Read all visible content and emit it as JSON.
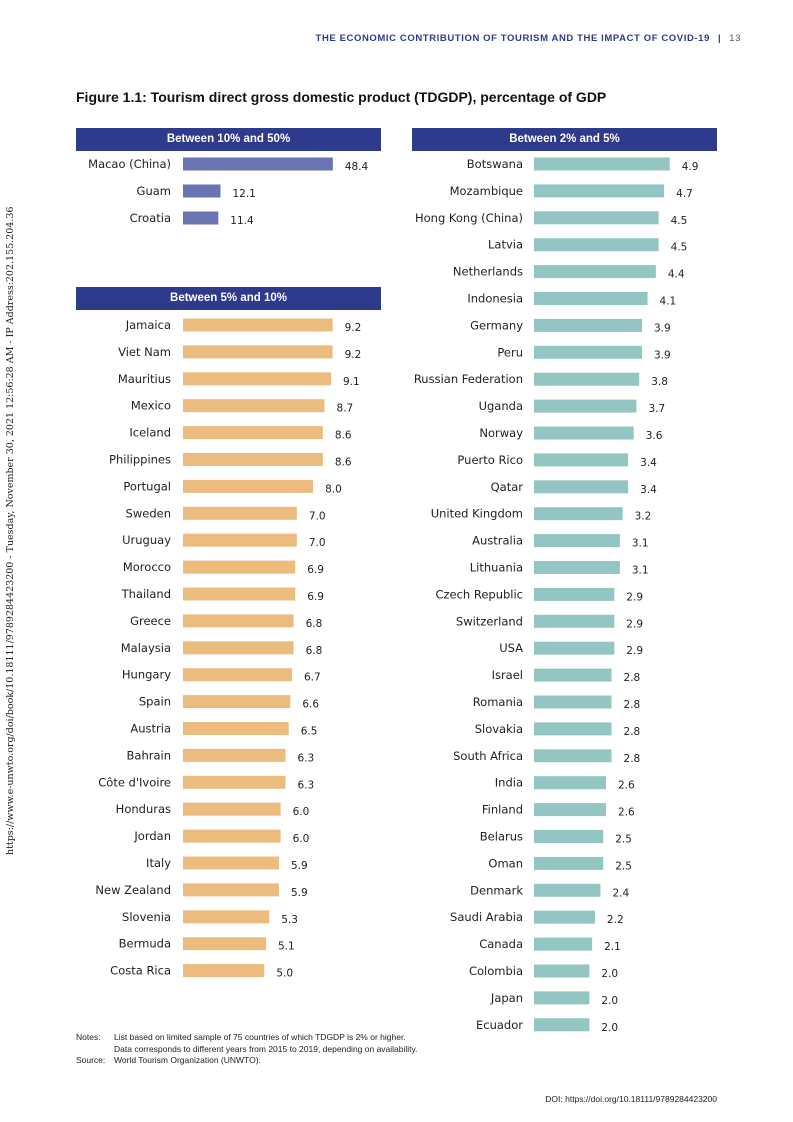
{
  "header": {
    "running_title": "THE ECONOMIC CONTRIBUTION OF TOURISM AND THE IMPACT OF COVID-19",
    "separator": "|",
    "page_number": "13"
  },
  "sidebar_text": "https://www.e-unwto.org/doi/book/10.18111/9789284423200 - Tuesday, November 30, 2021 12:56:28 AM - IP Address:202.155.204.36",
  "figure_title": "Figure 1.1: Tourism direct gross domestic product (TDGDP), percentage of GDP",
  "chart_data": [
    {
      "type": "bar",
      "orientation": "horizontal",
      "title": "Between 10% and 50%",
      "color": "#6b74b3",
      "categories": [
        "Macao (China)",
        "Guam",
        "Croatia"
      ],
      "values": [
        48.4,
        12.1,
        11.4
      ],
      "labels": [
        "48.4",
        "12.1",
        "11.4"
      ],
      "xlim": [
        0,
        52
      ]
    },
    {
      "type": "bar",
      "orientation": "horizontal",
      "title": "Between 5% and 10%",
      "color": "#ecbc7f",
      "categories": [
        "Jamaica",
        "Viet Nam",
        "Mauritius",
        "Mexico",
        "Iceland",
        "Philippines",
        "Portugal",
        "Sweden",
        "Uruguay",
        "Morocco",
        "Thailand",
        "Greece",
        "Malaysia",
        "Hungary",
        "Spain",
        "Austria",
        "Bahrain",
        "Côte d'Ivoire",
        "Honduras",
        "Jordan",
        "Italy",
        "New Zealand",
        "Slovenia",
        "Bermuda",
        "Costa Rica"
      ],
      "values": [
        9.2,
        9.2,
        9.1,
        8.7,
        8.6,
        8.6,
        8.0,
        7.0,
        7.0,
        6.9,
        6.9,
        6.8,
        6.8,
        6.7,
        6.6,
        6.5,
        6.3,
        6.3,
        6.0,
        6.0,
        5.9,
        5.9,
        5.3,
        5.1,
        5.0
      ],
      "labels": [
        "9.2",
        "9.2",
        "9.1",
        "8.7",
        "8.6",
        "8.6",
        "8.0",
        "7.0",
        "7.0",
        "6.9",
        "6.9",
        "6.8",
        "6.8",
        "6.7",
        "6.6",
        "6.5",
        "6.3",
        "6.3",
        "6.0",
        "6.0",
        "5.9",
        "5.9",
        "5.3",
        "5.1",
        "5.0"
      ],
      "xlim": [
        0,
        9.9
      ]
    },
    {
      "type": "bar",
      "orientation": "horizontal",
      "title": "Between 2% and 5%",
      "color": "#93c5c3",
      "categories": [
        "Botswana",
        "Mozambique",
        "Hong Kong (China)",
        "Latvia",
        "Netherlands",
        "Indonesia",
        "Germany",
        "Peru",
        "Russian Federation",
        "Uganda",
        "Norway",
        "Puerto Rico",
        "Qatar",
        "United Kingdom",
        "Australia",
        "Lithuania",
        "Czech Republic",
        "Switzerland",
        "USA",
        "Israel",
        "Romania",
        "Slovakia",
        "South Africa",
        "India",
        "Finland",
        "Belarus",
        "Oman",
        "Denmark",
        "Saudi Arabia",
        "Canada",
        "Colombia",
        "Japan",
        "Ecuador"
      ],
      "values": [
        4.9,
        4.7,
        4.5,
        4.5,
        4.4,
        4.1,
        3.9,
        3.9,
        3.8,
        3.7,
        3.6,
        3.4,
        3.4,
        3.2,
        3.1,
        3.1,
        2.9,
        2.9,
        2.9,
        2.8,
        2.8,
        2.8,
        2.8,
        2.6,
        2.6,
        2.5,
        2.5,
        2.4,
        2.2,
        2.1,
        2.0,
        2.0,
        2.0
      ],
      "labels": [
        "4.9",
        "4.7",
        "4.5",
        "4.5",
        "4.4",
        "4.1",
        "3.9",
        "3.9",
        "3.8",
        "3.7",
        "3.6",
        "3.4",
        "3.4",
        "3.2",
        "3.1",
        "3.1",
        "2.9",
        "2.9",
        "2.9",
        "2.8",
        "2.8",
        "2.8",
        "2.8",
        "2.6",
        "2.6",
        "2.5",
        "2.5",
        "2.4",
        "2.2",
        "2.1",
        "2.0",
        "2.0",
        "2.0"
      ],
      "xlim": [
        0,
        5.2
      ]
    }
  ],
  "notes": {
    "notes_label": "Notes:",
    "notes_line1": "List based on limited sample of 75 countries of which TDGDP is 2% or higher.",
    "notes_line2": "Data corresponds to different years from 2015 to 2019, depending on availability.",
    "source_label": "Source:",
    "source_text": "World Tourism Organization (UNWTO)."
  },
  "doi": "DOI: https://doi.org/10.18111/9789284423200"
}
